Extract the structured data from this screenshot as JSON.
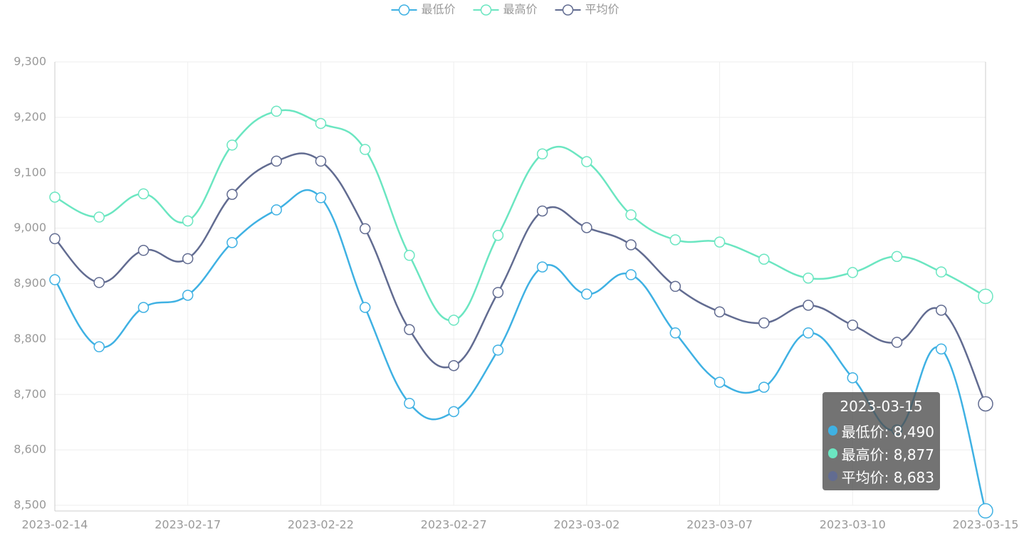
{
  "chart_data": {
    "type": "line",
    "categories": [
      "2023-02-14",
      null,
      null,
      "2023-02-17",
      null,
      null,
      "2023-02-22",
      null,
      null,
      "2023-02-27",
      null,
      null,
      "2023-03-02",
      null,
      null,
      "2023-03-07",
      null,
      null,
      "2023-03-10",
      null,
      null,
      "2023-03-15"
    ],
    "series": [
      {
        "name": "最低价",
        "color": "#3fb1e3",
        "values": [
          8907,
          8786,
          8857,
          8879,
          8974,
          9033,
          9055,
          8857,
          8684,
          8669,
          8780,
          8930,
          8881,
          8916,
          8811,
          8722,
          8713,
          8811,
          8730,
          8636,
          8782,
          8490
        ]
      },
      {
        "name": "最高价",
        "color": "#6be6c1",
        "values": [
          9056,
          9020,
          9062,
          9013,
          9150,
          9211,
          9189,
          9142,
          8951,
          8834,
          8987,
          9134,
          9120,
          9024,
          8979,
          8975,
          8944,
          8910,
          8920,
          8949,
          8921,
          8877
        ]
      },
      {
        "name": "平均价",
        "color": "#626c91",
        "values": [
          8981,
          8902,
          8960,
          8945,
          9061,
          9121,
          9121,
          8999,
          8817,
          8752,
          8884,
          9031,
          9001,
          8970,
          8895,
          8849,
          8829,
          8861,
          8825,
          8794,
          8852,
          8683
        ]
      }
    ],
    "ylim": [
      8500,
      9300
    ],
    "yticks": [
      {
        "value": 8500,
        "label": "8,500"
      },
      {
        "value": 8600,
        "label": "8,600"
      },
      {
        "value": 8700,
        "label": "8,700"
      },
      {
        "value": 8800,
        "label": "8,800"
      },
      {
        "value": 8900,
        "label": "8,900"
      },
      {
        "value": 9000,
        "label": "9,000"
      },
      {
        "value": 9100,
        "label": "9,100"
      },
      {
        "value": 9200,
        "label": "9,200"
      },
      {
        "value": 9300,
        "label": "9,300"
      }
    ],
    "grid": true,
    "legend": "top",
    "tooltip": {
      "title": "2023-03-15",
      "items": [
        "最低价: 8,490",
        "最高价: 8,877",
        "平均价: 8,683"
      ]
    }
  }
}
